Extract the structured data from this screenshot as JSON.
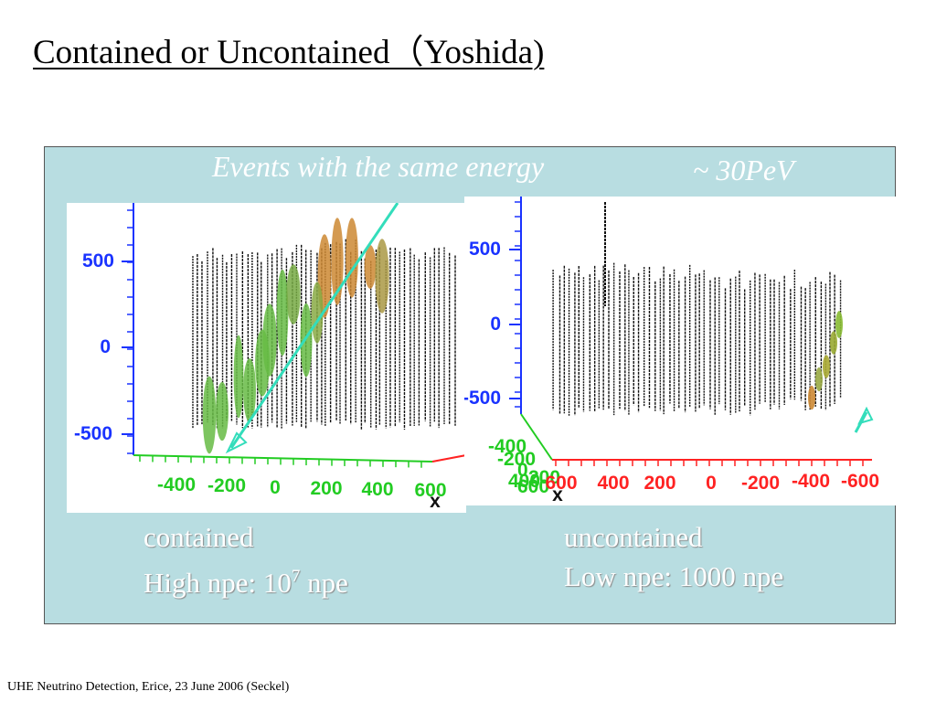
{
  "title": "Contained or Uncontained（Yoshida)",
  "subtitle": "Events with the same energy",
  "energy": "~ 30PeV",
  "left_plot": {
    "y_ticks": [
      "500",
      "0",
      "-500"
    ],
    "x_ticks": [
      "-400",
      "-200",
      "0",
      "200",
      "400",
      "600"
    ],
    "x_axis_letter": "x"
  },
  "right_plot": {
    "y_ticks": [
      "500",
      "0",
      "-500"
    ],
    "x_ticks": [
      "600",
      "400",
      "200",
      "0",
      "-200",
      "-400",
      "-600"
    ],
    "depth_ticks": [
      "-400",
      "-200",
      "0",
      "200",
      "400",
      "600"
    ],
    "x_axis_letter": "x"
  },
  "captions": {
    "left_line1": "contained",
    "left_line2_prefix": "High npe: 10",
    "left_line2_exp": "7",
    "left_line2_suffix": " npe",
    "right_line1": "uncontained",
    "right_line2": "Low npe: 1000 npe"
  },
  "footer": "UHE Neutrino Detection, Erice, 23 June 2006 (Seckel)",
  "colors": {
    "panel": "#b8dde1",
    "y_axis": "#1a33ff",
    "x_axis_green": "#22cc22",
    "x_axis_red": "#ff2222",
    "track": "#33ddbb",
    "hit_green": "#66bb44",
    "hit_orange": "#cc8833"
  }
}
